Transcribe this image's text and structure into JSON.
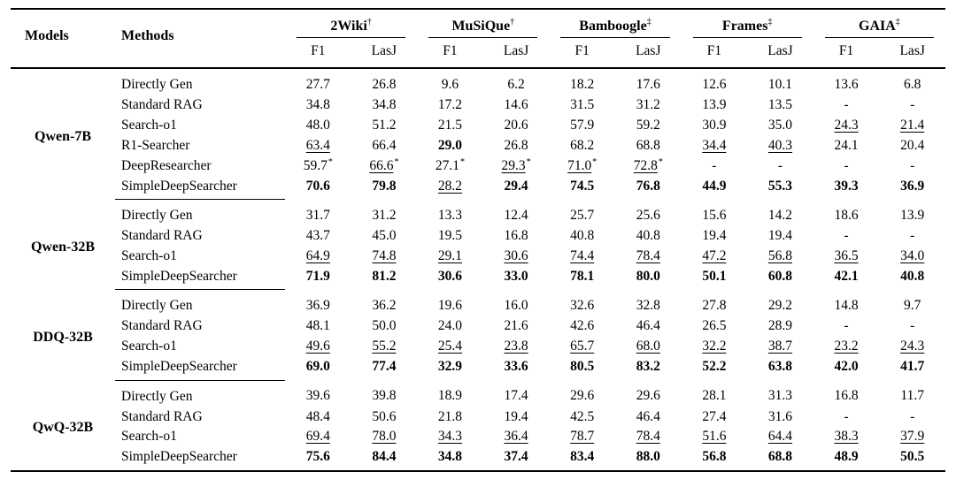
{
  "colors": {
    "background": "#ffffff",
    "text": "#000000",
    "rule": "#000000"
  },
  "table": {
    "headers": {
      "models": "Models",
      "methods": "Methods",
      "metrics": [
        "F1",
        "LasJ"
      ],
      "benchmarks": [
        {
          "name": "2Wiki",
          "marker": "†"
        },
        {
          "name": "MuSiQue",
          "marker": "†"
        },
        {
          "name": "Bamboogle",
          "marker": "‡"
        },
        {
          "name": "Frames",
          "marker": "‡"
        },
        {
          "name": "GAIA",
          "marker": "‡"
        }
      ]
    },
    "groups": [
      {
        "model": "Qwen-7B",
        "rows": [
          {
            "method": "Directly Gen",
            "values": [
              {
                "v": "27.7"
              },
              {
                "v": "26.8"
              },
              {
                "v": "9.6"
              },
              {
                "v": "6.2"
              },
              {
                "v": "18.2"
              },
              {
                "v": "17.6"
              },
              {
                "v": "12.6"
              },
              {
                "v": "10.1"
              },
              {
                "v": "13.6"
              },
              {
                "v": "6.8"
              }
            ]
          },
          {
            "method": "Standard RAG",
            "values": [
              {
                "v": "34.8"
              },
              {
                "v": "34.8"
              },
              {
                "v": "17.2"
              },
              {
                "v": "14.6"
              },
              {
                "v": "31.5"
              },
              {
                "v": "31.2"
              },
              {
                "v": "13.9"
              },
              {
                "v": "13.5"
              },
              {
                "v": "-"
              },
              {
                "v": "-"
              }
            ]
          },
          {
            "method": "Search-o1",
            "values": [
              {
                "v": "48.0"
              },
              {
                "v": "51.2"
              },
              {
                "v": "21.5"
              },
              {
                "v": "20.6"
              },
              {
                "v": "57.9"
              },
              {
                "v": "59.2"
              },
              {
                "v": "30.9"
              },
              {
                "v": "35.0"
              },
              {
                "v": "24.3",
                "u": true
              },
              {
                "v": "21.4",
                "u": true
              }
            ]
          },
          {
            "method": "R1-Searcher",
            "values": [
              {
                "v": "63.4",
                "u": true
              },
              {
                "v": "66.4"
              },
              {
                "v": "29.0",
                "b": true
              },
              {
                "v": "26.8"
              },
              {
                "v": "68.2"
              },
              {
                "v": "68.8"
              },
              {
                "v": "34.4",
                "u": true
              },
              {
                "v": "40.3",
                "u": true
              },
              {
                "v": "24.1"
              },
              {
                "v": "20.4"
              }
            ]
          },
          {
            "method": "DeepResearcher",
            "values": [
              {
                "v": "59.7",
                "s": true
              },
              {
                "v": "66.6",
                "u": true,
                "s": true
              },
              {
                "v": "27.1",
                "s": true
              },
              {
                "v": "29.3",
                "u": true,
                "s": true
              },
              {
                "v": "71.0",
                "u": true,
                "s": true
              },
              {
                "v": "72.8",
                "u": true,
                "s": true
              },
              {
                "v": "-"
              },
              {
                "v": "-"
              },
              {
                "v": "-"
              },
              {
                "v": "-"
              }
            ]
          },
          {
            "method": "SimpleDeepSearcher",
            "values": [
              {
                "v": "70.6",
                "b": true
              },
              {
                "v": "79.8",
                "b": true
              },
              {
                "v": "28.2",
                "u": true
              },
              {
                "v": "29.4",
                "b": true
              },
              {
                "v": "74.5",
                "b": true
              },
              {
                "v": "76.8",
                "b": true
              },
              {
                "v": "44.9",
                "b": true
              },
              {
                "v": "55.3",
                "b": true
              },
              {
                "v": "39.3",
                "b": true
              },
              {
                "v": "36.9",
                "b": true
              }
            ]
          }
        ]
      },
      {
        "model": "Qwen-32B",
        "rows": [
          {
            "method": "Directly Gen",
            "values": [
              {
                "v": "31.7"
              },
              {
                "v": "31.2"
              },
              {
                "v": "13.3"
              },
              {
                "v": "12.4"
              },
              {
                "v": "25.7"
              },
              {
                "v": "25.6"
              },
              {
                "v": "15.6"
              },
              {
                "v": "14.2"
              },
              {
                "v": "18.6"
              },
              {
                "v": "13.9"
              }
            ]
          },
          {
            "method": "Standard RAG",
            "values": [
              {
                "v": "43.7"
              },
              {
                "v": "45.0"
              },
              {
                "v": "19.5"
              },
              {
                "v": "16.8"
              },
              {
                "v": "40.8"
              },
              {
                "v": "40.8"
              },
              {
                "v": "19.4"
              },
              {
                "v": "19.4"
              },
              {
                "v": "-"
              },
              {
                "v": "-"
              }
            ]
          },
          {
            "method": "Search-o1",
            "values": [
              {
                "v": "64.9",
                "u": true
              },
              {
                "v": "74.8",
                "u": true
              },
              {
                "v": "29.1",
                "u": true
              },
              {
                "v": "30.6",
                "u": true
              },
              {
                "v": "74.4",
                "u": true
              },
              {
                "v": "78.4",
                "u": true
              },
              {
                "v": "47.2",
                "u": true
              },
              {
                "v": "56.8",
                "u": true
              },
              {
                "v": "36.5",
                "u": true
              },
              {
                "v": "34.0",
                "u": true
              }
            ]
          },
          {
            "method": "SimpleDeepSearcher",
            "values": [
              {
                "v": "71.9",
                "b": true
              },
              {
                "v": "81.2",
                "b": true
              },
              {
                "v": "30.6",
                "b": true
              },
              {
                "v": "33.0",
                "b": true
              },
              {
                "v": "78.1",
                "b": true
              },
              {
                "v": "80.0",
                "b": true
              },
              {
                "v": "50.1",
                "b": true
              },
              {
                "v": "60.8",
                "b": true
              },
              {
                "v": "42.1",
                "b": true
              },
              {
                "v": "40.8",
                "b": true
              }
            ]
          }
        ]
      },
      {
        "model": "DDQ-32B",
        "rows": [
          {
            "method": "Directly Gen",
            "values": [
              {
                "v": "36.9"
              },
              {
                "v": "36.2"
              },
              {
                "v": "19.6"
              },
              {
                "v": "16.0"
              },
              {
                "v": "32.6"
              },
              {
                "v": "32.8"
              },
              {
                "v": "27.8"
              },
              {
                "v": "29.2"
              },
              {
                "v": "14.8"
              },
              {
                "v": "9.7"
              }
            ]
          },
          {
            "method": "Standard RAG",
            "values": [
              {
                "v": "48.1"
              },
              {
                "v": "50.0"
              },
              {
                "v": "24.0"
              },
              {
                "v": "21.6"
              },
              {
                "v": "42.6"
              },
              {
                "v": "46.4"
              },
              {
                "v": "26.5"
              },
              {
                "v": "28.9"
              },
              {
                "v": "-"
              },
              {
                "v": "-"
              }
            ]
          },
          {
            "method": "Search-o1",
            "values": [
              {
                "v": "49.6",
                "u": true
              },
              {
                "v": "55.2",
                "u": true
              },
              {
                "v": "25.4",
                "u": true
              },
              {
                "v": "23.8",
                "u": true
              },
              {
                "v": "65.7",
                "u": true
              },
              {
                "v": "68.0",
                "u": true
              },
              {
                "v": "32.2",
                "u": true
              },
              {
                "v": "38.7",
                "u": true
              },
              {
                "v": "23.2",
                "u": true
              },
              {
                "v": "24.3",
                "u": true
              }
            ]
          },
          {
            "method": "SimpleDeepSearcher",
            "values": [
              {
                "v": "69.0",
                "b": true
              },
              {
                "v": "77.4",
                "b": true
              },
              {
                "v": "32.9",
                "b": true
              },
              {
                "v": "33.6",
                "b": true
              },
              {
                "v": "80.5",
                "b": true
              },
              {
                "v": "83.2",
                "b": true
              },
              {
                "v": "52.2",
                "b": true
              },
              {
                "v": "63.8",
                "b": true
              },
              {
                "v": "42.0",
                "b": true
              },
              {
                "v": "41.7",
                "b": true
              }
            ]
          }
        ]
      },
      {
        "model": "QwQ-32B",
        "rows": [
          {
            "method": "Directly Gen",
            "values": [
              {
                "v": "39.6"
              },
              {
                "v": "39.8"
              },
              {
                "v": "18.9"
              },
              {
                "v": "17.4"
              },
              {
                "v": "29.6"
              },
              {
                "v": "29.6"
              },
              {
                "v": "28.1"
              },
              {
                "v": "31.3"
              },
              {
                "v": "16.8"
              },
              {
                "v": "11.7"
              }
            ]
          },
          {
            "method": "Standard RAG",
            "values": [
              {
                "v": "48.4"
              },
              {
                "v": "50.6"
              },
              {
                "v": "21.8"
              },
              {
                "v": "19.4"
              },
              {
                "v": "42.5"
              },
              {
                "v": "46.4"
              },
              {
                "v": "27.4"
              },
              {
                "v": "31.6"
              },
              {
                "v": "-"
              },
              {
                "v": "-"
              }
            ]
          },
          {
            "method": "Search-o1",
            "values": [
              {
                "v": "69.4",
                "u": true
              },
              {
                "v": "78.0",
                "u": true
              },
              {
                "v": "34.3",
                "u": true
              },
              {
                "v": "36.4",
                "u": true
              },
              {
                "v": "78.7",
                "u": true
              },
              {
                "v": "78.4",
                "u": true
              },
              {
                "v": "51.6",
                "u": true
              },
              {
                "v": "64.4",
                "u": true
              },
              {
                "v": "38.3",
                "u": true
              },
              {
                "v": "37.9",
                "u": true
              }
            ]
          },
          {
            "method": "SimpleDeepSearcher",
            "values": [
              {
                "v": "75.6",
                "b": true
              },
              {
                "v": "84.4",
                "b": true
              },
              {
                "v": "34.8",
                "b": true
              },
              {
                "v": "37.4",
                "b": true
              },
              {
                "v": "83.4",
                "b": true
              },
              {
                "v": "88.0",
                "b": true
              },
              {
                "v": "56.8",
                "b": true
              },
              {
                "v": "68.8",
                "b": true
              },
              {
                "v": "48.9",
                "b": true
              },
              {
                "v": "50.5",
                "b": true
              }
            ]
          }
        ]
      }
    ]
  }
}
